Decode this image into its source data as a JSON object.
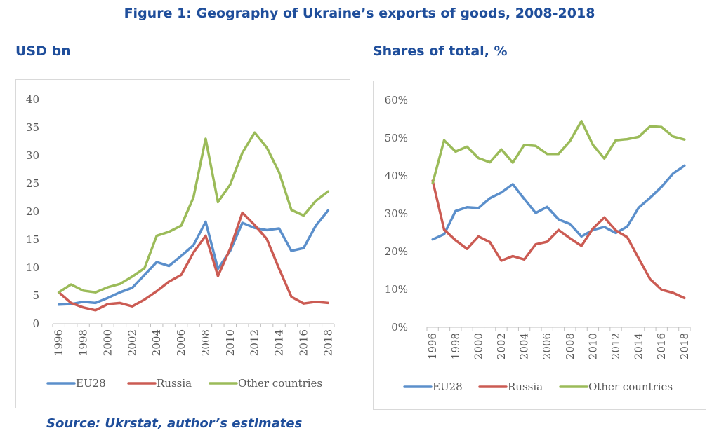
{
  "figure_title": "Figure 1: Geography of Ukraine’s exports of goods, 2008-2018",
  "left_panel_label": "USD bn",
  "right_panel_label": "Shares of total, %",
  "source": "Source: Ukrstat, author’s estimates",
  "colors": {
    "EU28": "#5B8FCB",
    "Russia": "#CB5B53",
    "Other countries": "#9BBB59"
  },
  "chart_data": [
    {
      "type": "line",
      "title": "",
      "xlabel": "",
      "ylabel": "",
      "x": [
        1996,
        1997,
        1998,
        1999,
        2000,
        2001,
        2002,
        2003,
        2004,
        2005,
        2006,
        2007,
        2008,
        2009,
        2010,
        2011,
        2012,
        2013,
        2014,
        2015,
        2016,
        2017,
        2018
      ],
      "x_tick_labels": [
        "1996",
        "1998",
        "2000",
        "2002",
        "2004",
        "2006",
        "2008",
        "2010",
        "2012",
        "2014",
        "2016",
        "2018"
      ],
      "ylim": [
        0,
        40
      ],
      "y_ticks": [
        0,
        5,
        10,
        15,
        20,
        25,
        30,
        35,
        40
      ],
      "y_tick_labels": [
        "0",
        "5",
        "10",
        "15",
        "20",
        "25",
        "30",
        "35",
        "40"
      ],
      "grid": false,
      "legend": "bottom",
      "series": [
        {
          "name": "EU28",
          "values": [
            3.4,
            3.5,
            3.9,
            3.7,
            4.6,
            5.6,
            6.4,
            8.7,
            11.0,
            10.3,
            12.1,
            14.0,
            18.2,
            9.8,
            13.0,
            18.0,
            17.1,
            16.7,
            17.0,
            13.0,
            13.5,
            17.5,
            20.2
          ]
        },
        {
          "name": "Russia",
          "values": [
            5.6,
            3.7,
            2.9,
            2.4,
            3.5,
            3.7,
            3.1,
            4.3,
            5.8,
            7.5,
            8.7,
            12.7,
            15.7,
            8.5,
            13.4,
            19.8,
            17.6,
            15.1,
            9.8,
            4.8,
            3.6,
            3.9,
            3.7
          ]
        },
        {
          "name": "Other countries",
          "values": [
            5.6,
            7.0,
            5.9,
            5.6,
            6.5,
            7.1,
            8.4,
            9.9,
            15.7,
            16.4,
            17.5,
            22.5,
            33.0,
            21.7,
            24.8,
            30.5,
            34.1,
            31.4,
            27.0,
            20.3,
            19.3,
            21.9,
            23.6
          ]
        }
      ]
    },
    {
      "type": "line",
      "title": "",
      "xlabel": "",
      "ylabel": "",
      "x": [
        1996,
        1997,
        1998,
        1999,
        2000,
        2001,
        2002,
        2003,
        2004,
        2005,
        2006,
        2007,
        2008,
        2009,
        2010,
        2011,
        2012,
        2013,
        2014,
        2015,
        2016,
        2017,
        2018
      ],
      "x_tick_labels": [
        "1996",
        "1998",
        "2000",
        "2002",
        "2004",
        "2006",
        "2008",
        "2010",
        "2012",
        "2014",
        "2016",
        "2018"
      ],
      "ylim": [
        0,
        60
      ],
      "y_ticks": [
        0,
        10,
        20,
        30,
        40,
        50,
        60
      ],
      "y_tick_labels": [
        "0%",
        "10%",
        "20%",
        "30%",
        "40%",
        "50%",
        "60%"
      ],
      "grid": false,
      "legend": "bottom",
      "series": [
        {
          "name": "EU28",
          "values": [
            23.2,
            24.6,
            30.7,
            31.7,
            31.5,
            34.1,
            35.6,
            37.8,
            33.9,
            30.2,
            31.8,
            28.5,
            27.3,
            24.0,
            25.7,
            26.5,
            24.9,
            26.6,
            31.6,
            34.2,
            37.1,
            40.6,
            42.7
          ]
        },
        {
          "name": "Russia",
          "values": [
            38.7,
            25.8,
            23.0,
            20.7,
            24.0,
            22.5,
            17.6,
            18.8,
            17.9,
            21.9,
            22.6,
            25.7,
            23.5,
            21.5,
            26.1,
            29.0,
            25.6,
            23.8,
            18.2,
            12.7,
            9.9,
            9.1,
            7.7
          ]
        },
        {
          "name": "Other countries",
          "values": [
            38.1,
            49.4,
            46.4,
            47.7,
            44.7,
            43.6,
            47.0,
            43.5,
            48.2,
            47.9,
            45.8,
            45.8,
            49.2,
            54.5,
            48.2,
            44.6,
            49.4,
            49.7,
            50.3,
            53.1,
            52.9,
            50.4,
            49.6
          ]
        }
      ]
    }
  ]
}
